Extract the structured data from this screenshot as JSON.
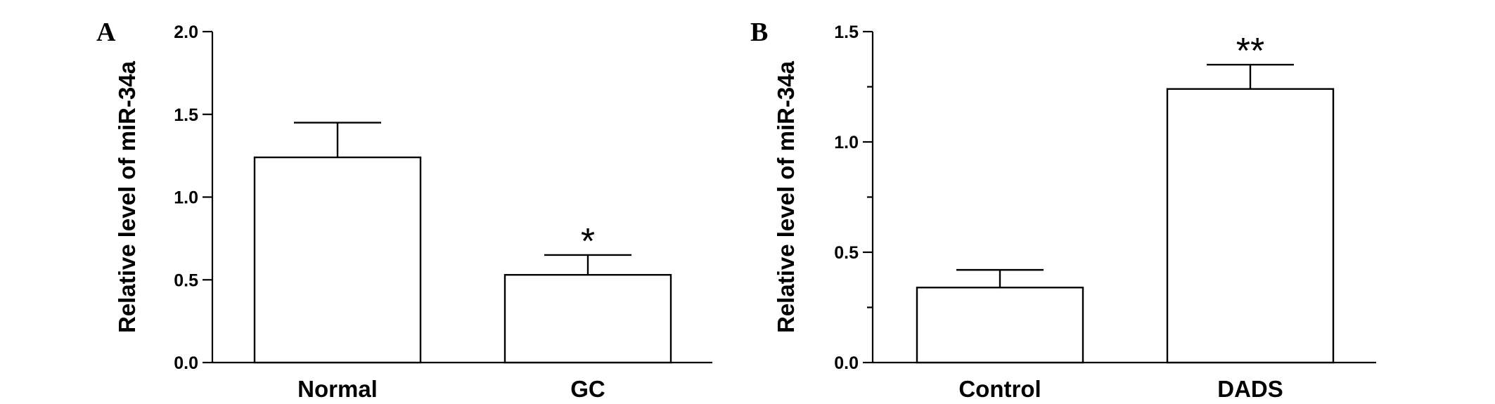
{
  "chart_data": [
    {
      "type": "bar",
      "panel": "A",
      "categories": [
        "Normal",
        "GC"
      ],
      "values": [
        1.24,
        0.53
      ],
      "errors": [
        0.21,
        0.12
      ],
      "significance": [
        "",
        "*"
      ],
      "ylabel": "Relative level of miR-34a",
      "ylim": [
        0,
        2.0
      ],
      "yticks": [
        "0.0",
        "0.5",
        "1.0",
        "1.5",
        "2.0"
      ],
      "ytick_values": [
        0,
        0.5,
        1.0,
        1.5,
        2.0
      ],
      "minor_ticks": false,
      "grid": false
    },
    {
      "type": "bar",
      "panel": "B",
      "categories": [
        "Control",
        "DADS"
      ],
      "values": [
        0.34,
        1.24
      ],
      "errors": [
        0.08,
        0.11
      ],
      "significance": [
        "",
        "**"
      ],
      "ylabel": "Relative level of miR-34a",
      "ylim": [
        0,
        1.5
      ],
      "yticks": [
        "0.0",
        "0.5",
        "1.0",
        "1.5"
      ],
      "ytick_values": [
        0,
        0.5,
        1.0,
        1.5
      ],
      "minor_ticks": true,
      "grid": false
    }
  ],
  "colors": {
    "bar_fill": "#ffffff",
    "stroke": "#000000"
  }
}
